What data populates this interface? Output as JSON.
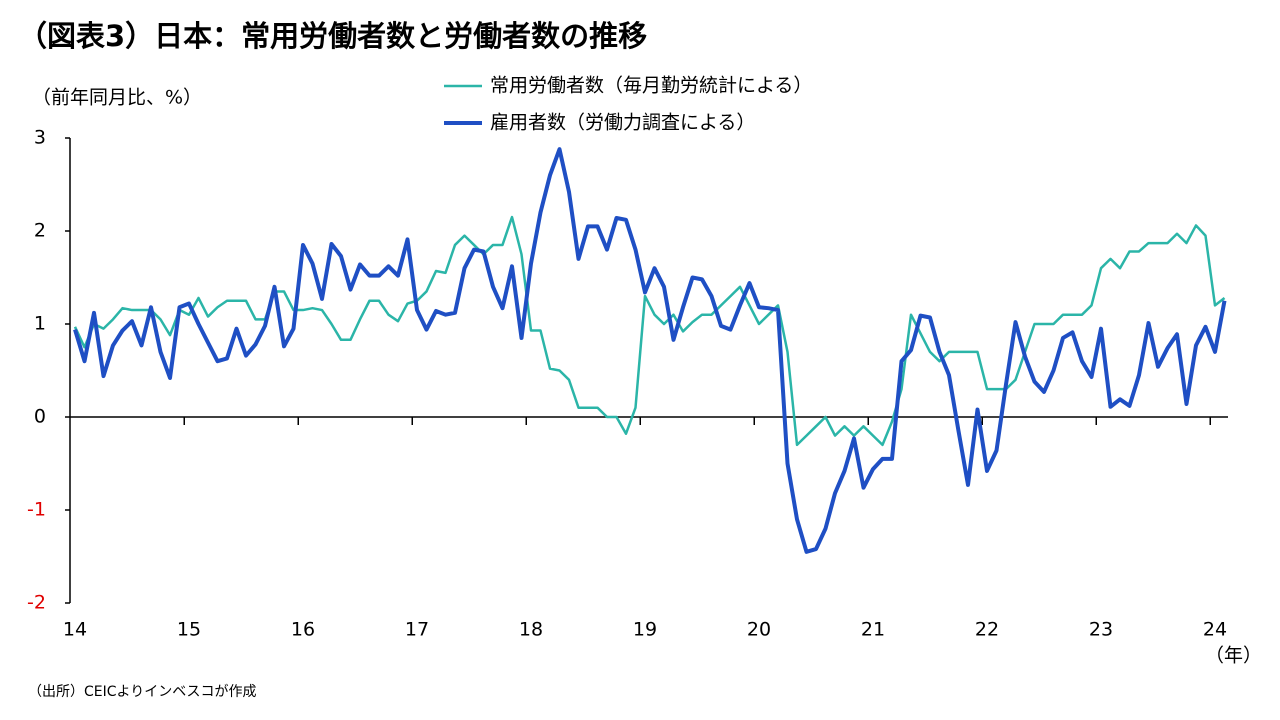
{
  "chart_data": {
    "type": "line",
    "title": "（図表3）日本：常用労働者数と労働者数の推移",
    "y_axis_label": "（前年同月比、%）",
    "x_axis_label": "（年）",
    "source": "（出所）CEICよりインベスコが作成",
    "categories": [
      "14",
      null,
      null,
      null,
      null,
      null,
      null,
      null,
      null,
      null,
      null,
      null,
      "15",
      null,
      null,
      null,
      null,
      null,
      null,
      null,
      null,
      null,
      null,
      null,
      "16",
      null,
      null,
      null,
      null,
      null,
      null,
      null,
      null,
      null,
      null,
      null,
      "17",
      null,
      null,
      null,
      null,
      null,
      null,
      null,
      null,
      null,
      null,
      null,
      "18",
      null,
      null,
      null,
      null,
      null,
      null,
      null,
      null,
      null,
      null,
      null,
      "19",
      null,
      null,
      null,
      null,
      null,
      null,
      null,
      null,
      null,
      null,
      null,
      "20",
      null,
      null,
      null,
      null,
      null,
      null,
      null,
      null,
      null,
      null,
      null,
      "21",
      null,
      null,
      null,
      null,
      null,
      null,
      null,
      null,
      null,
      null,
      null,
      "22",
      null,
      null,
      null,
      null,
      null,
      null,
      null,
      null,
      null,
      null,
      null,
      "23",
      null,
      null,
      null,
      null,
      null,
      null,
      null,
      null,
      null,
      null,
      null,
      "24",
      null
    ],
    "series": [
      {
        "name": "常用労働者数（毎月勤労統計による）",
        "color": "#2bb5a8",
        "width": 2.5,
        "values": [
          0.97,
          0.75,
          1.0,
          0.95,
          1.05,
          1.17,
          1.15,
          1.15,
          1.15,
          1.05,
          0.88,
          1.15,
          1.1,
          1.28,
          1.08,
          1.18,
          1.25,
          1.25,
          1.25,
          1.05,
          1.05,
          1.35,
          1.35,
          1.15,
          1.15,
          1.17,
          1.15,
          1.0,
          0.83,
          0.83,
          1.05,
          1.25,
          1.25,
          1.1,
          1.03,
          1.22,
          1.25,
          1.35,
          1.57,
          1.55,
          1.85,
          1.95,
          1.85,
          1.75,
          1.85,
          1.85,
          2.15,
          1.75,
          0.93,
          0.93,
          0.52,
          0.5,
          0.4,
          0.1,
          0.1,
          0.1,
          0.0,
          0.0,
          -0.18,
          0.1,
          1.3,
          1.1,
          1.0,
          1.1,
          0.92,
          1.02,
          1.1,
          1.1,
          1.2,
          1.3,
          1.4,
          1.2,
          1.0,
          1.1,
          1.2,
          0.7,
          -0.3,
          -0.2,
          -0.1,
          0.0,
          -0.2,
          -0.1,
          -0.2,
          -0.1,
          -0.2,
          -0.3,
          -0.05,
          0.3,
          1.1,
          0.9,
          0.7,
          0.6,
          0.7,
          0.7,
          0.7,
          0.7,
          0.3,
          0.3,
          0.3,
          0.4,
          0.7,
          1.0,
          1.0,
          1.0,
          1.1,
          1.1,
          1.1,
          1.2,
          1.6,
          1.7,
          1.6,
          1.78,
          1.78,
          1.87,
          1.87,
          1.87,
          1.97,
          1.87,
          2.06,
          1.95,
          1.2,
          1.28
        ]
      },
      {
        "name": "雇用者数（労働力調査による）",
        "color": "#1f4fc4",
        "width": 4,
        "values": [
          0.94,
          0.6,
          1.12,
          0.44,
          0.77,
          0.93,
          1.03,
          0.77,
          1.18,
          0.7,
          0.42,
          1.18,
          1.22,
          1.0,
          0.8,
          0.6,
          0.63,
          0.95,
          0.66,
          0.78,
          0.98,
          1.4,
          0.76,
          0.95,
          1.85,
          1.65,
          1.27,
          1.86,
          1.73,
          1.37,
          1.64,
          1.52,
          1.52,
          1.62,
          1.52,
          1.91,
          1.15,
          0.94,
          1.14,
          1.1,
          1.12,
          1.6,
          1.8,
          1.78,
          1.4,
          1.17,
          1.62,
          0.85,
          1.65,
          2.2,
          2.6,
          2.88,
          2.42,
          1.7,
          2.05,
          2.05,
          1.8,
          2.14,
          2.12,
          1.8,
          1.34,
          1.6,
          1.4,
          0.83,
          1.18,
          1.5,
          1.48,
          1.3,
          0.98,
          0.94,
          1.2,
          1.44,
          1.18,
          1.17,
          1.15,
          -0.5,
          -1.1,
          -1.45,
          -1.42,
          -1.2,
          -0.82,
          -0.58,
          -0.23,
          -0.76,
          -0.56,
          -0.45,
          -0.45,
          0.6,
          0.72,
          1.09,
          1.07,
          0.7,
          0.45,
          -0.15,
          -0.73,
          0.08,
          -0.58,
          -0.36,
          0.35,
          1.02,
          0.65,
          0.38,
          0.27,
          0.5,
          0.85,
          0.91,
          0.6,
          0.43,
          0.95,
          0.11,
          0.19,
          0.12,
          0.45,
          1.01,
          0.54,
          0.74,
          0.89,
          0.14,
          0.77,
          0.97,
          0.7,
          1.25
        ]
      }
    ],
    "ylim": [
      -2,
      3
    ],
    "yticks": [
      -2,
      -1,
      0,
      1,
      2,
      3
    ],
    "negative_tick_color": "#e00000",
    "legend": "top"
  }
}
